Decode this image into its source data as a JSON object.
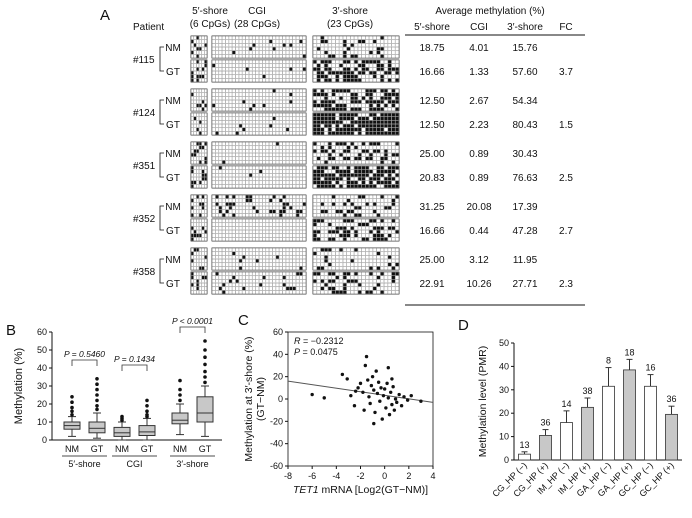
{
  "panel_a": {
    "label": "A",
    "col_patient": "Patient",
    "region_headers": [
      {
        "name": "5′-shore",
        "sub": "(6 CpGs)",
        "cpgs": 6
      },
      {
        "name": "CGI",
        "sub": "(28 CpGs)",
        "cpgs": 28
      },
      {
        "name": "3′-shore",
        "sub": "(23 CpGs)",
        "cpgs": 23
      }
    ],
    "avg_title": "Average methylation (%)",
    "table_headers": [
      "5′-shore",
      "CGI",
      "3′-shore",
      "FC"
    ],
    "patients": [
      {
        "id": "#115",
        "rows": [
          {
            "type": "NM",
            "shore5": "18.75",
            "cgi": "4.01",
            "shore3": "15.76",
            "fc": ""
          },
          {
            "type": "GT",
            "shore5": "16.66",
            "cgi": "1.33",
            "shore3": "57.60",
            "fc": "3.7"
          }
        ]
      },
      {
        "id": "#124",
        "rows": [
          {
            "type": "NM",
            "shore5": "12.50",
            "cgi": "2.67",
            "shore3": "54.34",
            "fc": ""
          },
          {
            "type": "GT",
            "shore5": "12.50",
            "cgi": "2.23",
            "shore3": "80.43",
            "fc": "1.5"
          }
        ]
      },
      {
        "id": "#351",
        "rows": [
          {
            "type": "NM",
            "shore5": "25.00",
            "cgi": "0.89",
            "shore3": "30.43",
            "fc": ""
          },
          {
            "type": "GT",
            "shore5": "20.83",
            "cgi": "0.89",
            "shore3": "76.63",
            "fc": "2.5"
          }
        ]
      },
      {
        "id": "#352",
        "rows": [
          {
            "type": "NM",
            "shore5": "31.25",
            "cgi": "20.08",
            "shore3": "17.39",
            "fc": ""
          },
          {
            "type": "GT",
            "shore5": "16.66",
            "cgi": "0.44",
            "shore3": "47.28",
            "fc": "2.7"
          }
        ]
      },
      {
        "id": "#358",
        "rows": [
          {
            "type": "NM",
            "shore5": "25.00",
            "cgi": "3.12",
            "shore3": "11.95",
            "fc": ""
          },
          {
            "type": "GT",
            "shore5": "22.91",
            "cgi": "10.26",
            "shore3": "27.71",
            "fc": "2.3"
          }
        ]
      }
    ]
  },
  "chart_data": [
    {
      "panel": "B",
      "type": "box",
      "ylabel": "Methylation (%)",
      "ylim": [
        0,
        60
      ],
      "yticks": [
        0,
        10,
        20,
        30,
        40,
        50,
        60
      ],
      "categories": [
        "NM",
        "GT",
        "NM",
        "GT",
        "NM",
        "GT"
      ],
      "groups": [
        "5′-shore",
        "CGI",
        "3′-shore"
      ],
      "pvalues": [
        "P = 0.5460",
        "P = 0.1434",
        "P < 0.0001"
      ],
      "boxes": [
        {
          "whisker_low": 2,
          "q1": 6,
          "median": 8,
          "q3": 10,
          "whisker_high": 13,
          "outliers": [
            14,
            16,
            18,
            21,
            24
          ]
        },
        {
          "whisker_low": 1,
          "q1": 4,
          "median": 6.5,
          "q3": 10,
          "whisker_high": 15,
          "outliers": [
            17,
            19,
            22,
            25,
            28,
            31,
            34
          ]
        },
        {
          "whisker_low": 0,
          "q1": 2,
          "median": 4,
          "q3": 7,
          "whisker_high": 10,
          "outliers": [
            11,
            12,
            13
          ]
        },
        {
          "whisker_low": 0,
          "q1": 2.5,
          "median": 4.5,
          "q3": 8,
          "whisker_high": 12,
          "outliers": [
            13,
            14,
            16,
            19,
            22
          ]
        },
        {
          "whisker_low": 3,
          "q1": 9,
          "median": 11,
          "q3": 15,
          "whisker_high": 20,
          "outliers": [
            22,
            25,
            28,
            33
          ]
        },
        {
          "whisker_low": 2,
          "q1": 10,
          "median": 15,
          "q3": 24,
          "whisker_high": 30,
          "outliers": [
            32,
            35,
            38,
            42,
            46,
            50,
            55
          ]
        }
      ]
    },
    {
      "panel": "C",
      "type": "scatter",
      "xlabel_italic": "TET1",
      "xlabel_rest": " mRNA [Log2(GT−NM)]",
      "ylabel": "Methylation at 3′-shore (%)",
      "ylabel2": "(GT−NM)",
      "xlim": [
        -8,
        4
      ],
      "ylim": [
        -60,
        60
      ],
      "xticks": [
        -8,
        -6,
        -4,
        -2,
        0,
        2,
        4
      ],
      "yticks": [
        -60,
        -40,
        -20,
        0,
        20,
        40,
        60
      ],
      "r_label": "R",
      "r_value": " = −0.2312",
      "p_label": "P",
      "p_value": " = 0.0475",
      "fit": {
        "x": [
          -8,
          4
        ],
        "y": [
          16,
          -3
        ]
      },
      "points": [
        {
          "x": -6,
          "y": 4
        },
        {
          "x": -5,
          "y": 1
        },
        {
          "x": -3.5,
          "y": 22
        },
        {
          "x": -3.1,
          "y": 18
        },
        {
          "x": -2.8,
          "y": 3
        },
        {
          "x": -2.5,
          "y": -6
        },
        {
          "x": -2.2,
          "y": 10
        },
        {
          "x": -2,
          "y": 14
        },
        {
          "x": -1.8,
          "y": 6
        },
        {
          "x": -1.6,
          "y": 30
        },
        {
          "x": -1.5,
          "y": 38
        },
        {
          "x": -1.4,
          "y": 17
        },
        {
          "x": -1.3,
          "y": 2
        },
        {
          "x": -1.2,
          "y": -4
        },
        {
          "x": -1.1,
          "y": 12
        },
        {
          "x": -1,
          "y": 20
        },
        {
          "x": -0.9,
          "y": 8
        },
        {
          "x": -0.8,
          "y": -12
        },
        {
          "x": -0.7,
          "y": 25
        },
        {
          "x": -0.6,
          "y": 5
        },
        {
          "x": -0.5,
          "y": 15
        },
        {
          "x": -0.4,
          "y": -2
        },
        {
          "x": -0.3,
          "y": 10
        },
        {
          "x": -0.2,
          "y": -18
        },
        {
          "x": -0.1,
          "y": 3
        },
        {
          "x": 0,
          "y": 9
        },
        {
          "x": 0.1,
          "y": -8
        },
        {
          "x": 0.2,
          "y": 14
        },
        {
          "x": 0.3,
          "y": 1
        },
        {
          "x": 0.4,
          "y": -14
        },
        {
          "x": 0.5,
          "y": 6
        },
        {
          "x": 0.6,
          "y": -5
        },
        {
          "x": 0.7,
          "y": 11
        },
        {
          "x": 0.8,
          "y": -10
        },
        {
          "x": 0.9,
          "y": 0
        },
        {
          "x": 1,
          "y": -3
        },
        {
          "x": 1.2,
          "y": 4
        },
        {
          "x": 1.4,
          "y": -6
        },
        {
          "x": 1.6,
          "y": 2
        },
        {
          "x": 1.9,
          "y": -1
        },
        {
          "x": 2.2,
          "y": 3
        },
        {
          "x": 3,
          "y": -2
        },
        {
          "x": -1.7,
          "y": -10
        },
        {
          "x": -2.4,
          "y": 7
        },
        {
          "x": 0.3,
          "y": 28
        },
        {
          "x": -0.9,
          "y": -22
        },
        {
          "x": 0.6,
          "y": 18
        }
      ]
    },
    {
      "panel": "D",
      "type": "bar",
      "ylabel": "Methylation level (PMR)",
      "ylim": [
        0,
        50
      ],
      "yticks": [
        0,
        10,
        20,
        30,
        40,
        50
      ],
      "categories": [
        "CG_HP (−)",
        "CG_HP (+)",
        "IM_HP (−)",
        "IM_HP (+)",
        "GA_HP (−)",
        "GA_HP (+)",
        "GC_HP (−)",
        "GC_HP (+)"
      ],
      "values": [
        2.5,
        10.5,
        16,
        22.5,
        31.5,
        38.5,
        31.5,
        19.5
      ],
      "errors": [
        1,
        2.5,
        5,
        4,
        8,
        4.5,
        5,
        3.5
      ],
      "n_labels": [
        "13",
        "36",
        "14",
        "38",
        "8",
        "18",
        "16",
        "36"
      ],
      "colors": [
        "#ffffff",
        "#c8c8c8",
        "#ffffff",
        "#c8c8c8",
        "#ffffff",
        "#c8c8c8",
        "#ffffff",
        "#c8c8c8"
      ]
    }
  ],
  "panel_labels": {
    "b": "B",
    "c": "C",
    "d": "D"
  }
}
